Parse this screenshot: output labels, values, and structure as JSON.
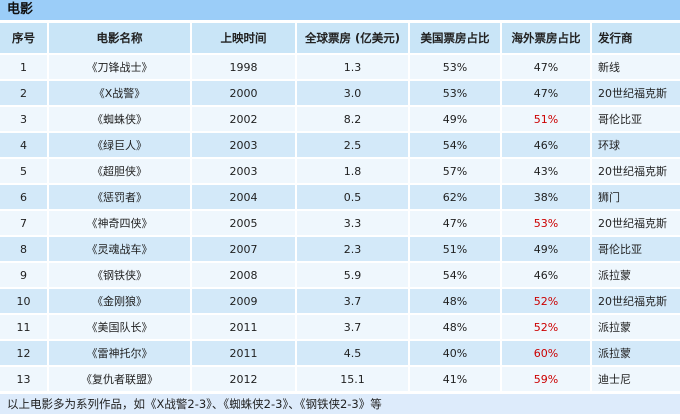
{
  "title": "电影",
  "colors": {
    "title_bar_bg": "#9bcdf8",
    "header_bg": "#c9e5f7",
    "row_odd_bg": "#eff7fd",
    "row_even_bg": "#d3e9f9",
    "footer_bg": "#ddebfb",
    "text": "#1f1f1f",
    "highlight_red": "#cc0000"
  },
  "table": {
    "columns": [
      {
        "key": "index",
        "label": "序号"
      },
      {
        "key": "name",
        "label": "电影名称"
      },
      {
        "key": "year",
        "label": "上映时间"
      },
      {
        "key": "global_box_office",
        "label": "全球票房 (亿美元)"
      },
      {
        "key": "us_share",
        "label": "美国票房占比"
      },
      {
        "key": "overseas_share",
        "label": "海外票房占比"
      },
      {
        "key": "distributor",
        "label": "发行商"
      }
    ],
    "rows": [
      {
        "index": "1",
        "name": "《刀锋战士》",
        "year": "1998",
        "global_box_office": "1.3",
        "us_share": "53%",
        "overseas_share": "47%",
        "overseas_red": false,
        "distributor": "新线"
      },
      {
        "index": "2",
        "name": "《X战警》",
        "year": "2000",
        "global_box_office": "3.0",
        "us_share": "53%",
        "overseas_share": "47%",
        "overseas_red": false,
        "distributor": "20世纪福克斯"
      },
      {
        "index": "3",
        "name": "《蜘蛛侠》",
        "year": "2002",
        "global_box_office": "8.2",
        "us_share": "49%",
        "overseas_share": "51%",
        "overseas_red": true,
        "distributor": "哥伦比亚"
      },
      {
        "index": "4",
        "name": "《绿巨人》",
        "year": "2003",
        "global_box_office": "2.5",
        "us_share": "54%",
        "overseas_share": "46%",
        "overseas_red": false,
        "distributor": "环球"
      },
      {
        "index": "5",
        "name": "《超胆侠》",
        "year": "2003",
        "global_box_office": "1.8",
        "us_share": "57%",
        "overseas_share": "43%",
        "overseas_red": false,
        "distributor": "20世纪福克斯"
      },
      {
        "index": "6",
        "name": "《惩罚者》",
        "year": "2004",
        "global_box_office": "0.5",
        "us_share": "62%",
        "overseas_share": "38%",
        "overseas_red": false,
        "distributor": "狮门"
      },
      {
        "index": "7",
        "name": "《神奇四侠》",
        "year": "2005",
        "global_box_office": "3.3",
        "us_share": "47%",
        "overseas_share": "53%",
        "overseas_red": true,
        "distributor": "20世纪福克斯"
      },
      {
        "index": "8",
        "name": "《灵魂战车》",
        "year": "2007",
        "global_box_office": "2.3",
        "us_share": "51%",
        "overseas_share": "49%",
        "overseas_red": false,
        "distributor": "哥伦比亚"
      },
      {
        "index": "9",
        "name": "《钢铁侠》",
        "year": "2008",
        "global_box_office": "5.9",
        "us_share": "54%",
        "overseas_share": "46%",
        "overseas_red": false,
        "distributor": "派拉蒙"
      },
      {
        "index": "10",
        "name": "《金刚狼》",
        "year": "2009",
        "global_box_office": "3.7",
        "us_share": "48%",
        "overseas_share": "52%",
        "overseas_red": true,
        "distributor": "20世纪福克斯"
      },
      {
        "index": "11",
        "name": "《美国队长》",
        "year": "2011",
        "global_box_office": "3.7",
        "us_share": "48%",
        "overseas_share": "52%",
        "overseas_red": true,
        "distributor": "派拉蒙"
      },
      {
        "index": "12",
        "name": "《雷神托尔》",
        "year": "2011",
        "global_box_office": "4.5",
        "us_share": "40%",
        "overseas_share": "60%",
        "overseas_red": true,
        "distributor": "派拉蒙"
      },
      {
        "index": "13",
        "name": "《复仇者联盟》",
        "year": "2012",
        "global_box_office": "15.1",
        "us_share": "41%",
        "overseas_share": "59%",
        "overseas_red": true,
        "distributor": "迪士尼"
      }
    ]
  },
  "footer": {
    "note": "以上电影多为系列作品，如《X战警2-3》、《蜘蛛侠2-3》、《钢铁侠2-3》等"
  }
}
